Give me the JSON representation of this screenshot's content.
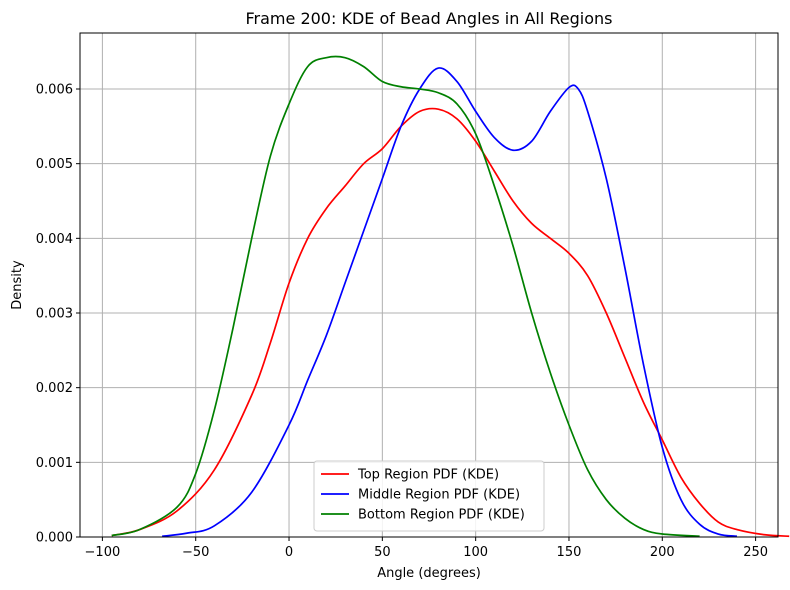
{
  "chart_data": {
    "type": "line",
    "title": "Frame 200: KDE of Bead Angles in All Regions",
    "xlabel": "Angle (degrees)",
    "ylabel": "Density",
    "xlim": [
      -112,
      262
    ],
    "ylim": [
      0,
      0.00675
    ],
    "xticks": [
      -100,
      -50,
      0,
      50,
      100,
      150,
      200,
      250
    ],
    "xtick_labels": [
      "−100",
      "−50",
      "0",
      "50",
      "100",
      "150",
      "200",
      "250"
    ],
    "yticks": [
      0,
      0.001,
      0.002,
      0.003,
      0.004,
      0.005,
      0.006
    ],
    "ytick_labels": [
      "0.000",
      "0.001",
      "0.002",
      "0.003",
      "0.004",
      "0.005",
      "0.006"
    ],
    "grid": true,
    "legend_position": "bottom-center",
    "series": [
      {
        "name": "Top Region PDF (KDE)",
        "color": "#ff0000",
        "points": [
          [
            -95,
            2e-05
          ],
          [
            -80,
            0.0001
          ],
          [
            -60,
            0.00035
          ],
          [
            -40,
            0.0009
          ],
          [
            -20,
            0.0019
          ],
          [
            -10,
            0.0026
          ],
          [
            0,
            0.0034
          ],
          [
            10,
            0.004
          ],
          [
            20,
            0.0044
          ],
          [
            30,
            0.0047
          ],
          [
            40,
            0.005
          ],
          [
            50,
            0.0052
          ],
          [
            60,
            0.0055
          ],
          [
            70,
            0.0057
          ],
          [
            80,
            0.00573
          ],
          [
            90,
            0.0056
          ],
          [
            100,
            0.0053
          ],
          [
            110,
            0.0049
          ],
          [
            120,
            0.0045
          ],
          [
            130,
            0.0042
          ],
          [
            140,
            0.004
          ],
          [
            150,
            0.0038
          ],
          [
            160,
            0.0035
          ],
          [
            170,
            0.003
          ],
          [
            180,
            0.0024
          ],
          [
            190,
            0.0018
          ],
          [
            200,
            0.0013
          ],
          [
            210,
            0.0008
          ],
          [
            220,
            0.00045
          ],
          [
            230,
            0.0002
          ],
          [
            240,
            0.0001
          ],
          [
            255,
            3e-05
          ],
          [
            268,
            1e-05
          ]
        ]
      },
      {
        "name": "Middle Region PDF (KDE)",
        "color": "#0000ff",
        "points": [
          [
            -68,
            1e-05
          ],
          [
            -55,
            5e-05
          ],
          [
            -40,
            0.00015
          ],
          [
            -20,
            0.0006
          ],
          [
            0,
            0.0015
          ],
          [
            10,
            0.0021
          ],
          [
            20,
            0.0027
          ],
          [
            30,
            0.0034
          ],
          [
            40,
            0.0041
          ],
          [
            50,
            0.0048
          ],
          [
            60,
            0.0055
          ],
          [
            70,
            0.006
          ],
          [
            80,
            0.00628
          ],
          [
            90,
            0.0061
          ],
          [
            100,
            0.0057
          ],
          [
            110,
            0.00535
          ],
          [
            120,
            0.00518
          ],
          [
            130,
            0.0053
          ],
          [
            140,
            0.0057
          ],
          [
            150,
            0.00602
          ],
          [
            155,
            0.006
          ],
          [
            160,
            0.0057
          ],
          [
            170,
            0.0048
          ],
          [
            180,
            0.0036
          ],
          [
            190,
            0.0023
          ],
          [
            200,
            0.0012
          ],
          [
            210,
            0.0005
          ],
          [
            220,
            0.00017
          ],
          [
            230,
            4e-05
          ],
          [
            240,
            1e-05
          ]
        ]
      },
      {
        "name": "Bottom Region PDF (KDE)",
        "color": "#008000",
        "points": [
          [
            -95,
            2e-05
          ],
          [
            -80,
            0.0001
          ],
          [
            -60,
            0.0004
          ],
          [
            -50,
            0.00085
          ],
          [
            -40,
            0.0017
          ],
          [
            -30,
            0.0028
          ],
          [
            -20,
            0.004
          ],
          [
            -10,
            0.0051
          ],
          [
            0,
            0.0058
          ],
          [
            10,
            0.0063
          ],
          [
            20,
            0.00642
          ],
          [
            30,
            0.00642
          ],
          [
            40,
            0.0063
          ],
          [
            50,
            0.0061
          ],
          [
            60,
            0.00603
          ],
          [
            70,
            0.006
          ],
          [
            80,
            0.00595
          ],
          [
            90,
            0.0058
          ],
          [
            100,
            0.0054
          ],
          [
            110,
            0.0047
          ],
          [
            120,
            0.0039
          ],
          [
            130,
            0.003
          ],
          [
            140,
            0.0022
          ],
          [
            150,
            0.0015
          ],
          [
            160,
            0.0009
          ],
          [
            170,
            0.0005
          ],
          [
            180,
            0.00025
          ],
          [
            190,
            0.0001
          ],
          [
            200,
            4e-05
          ],
          [
            220,
            1e-05
          ]
        ]
      }
    ]
  }
}
